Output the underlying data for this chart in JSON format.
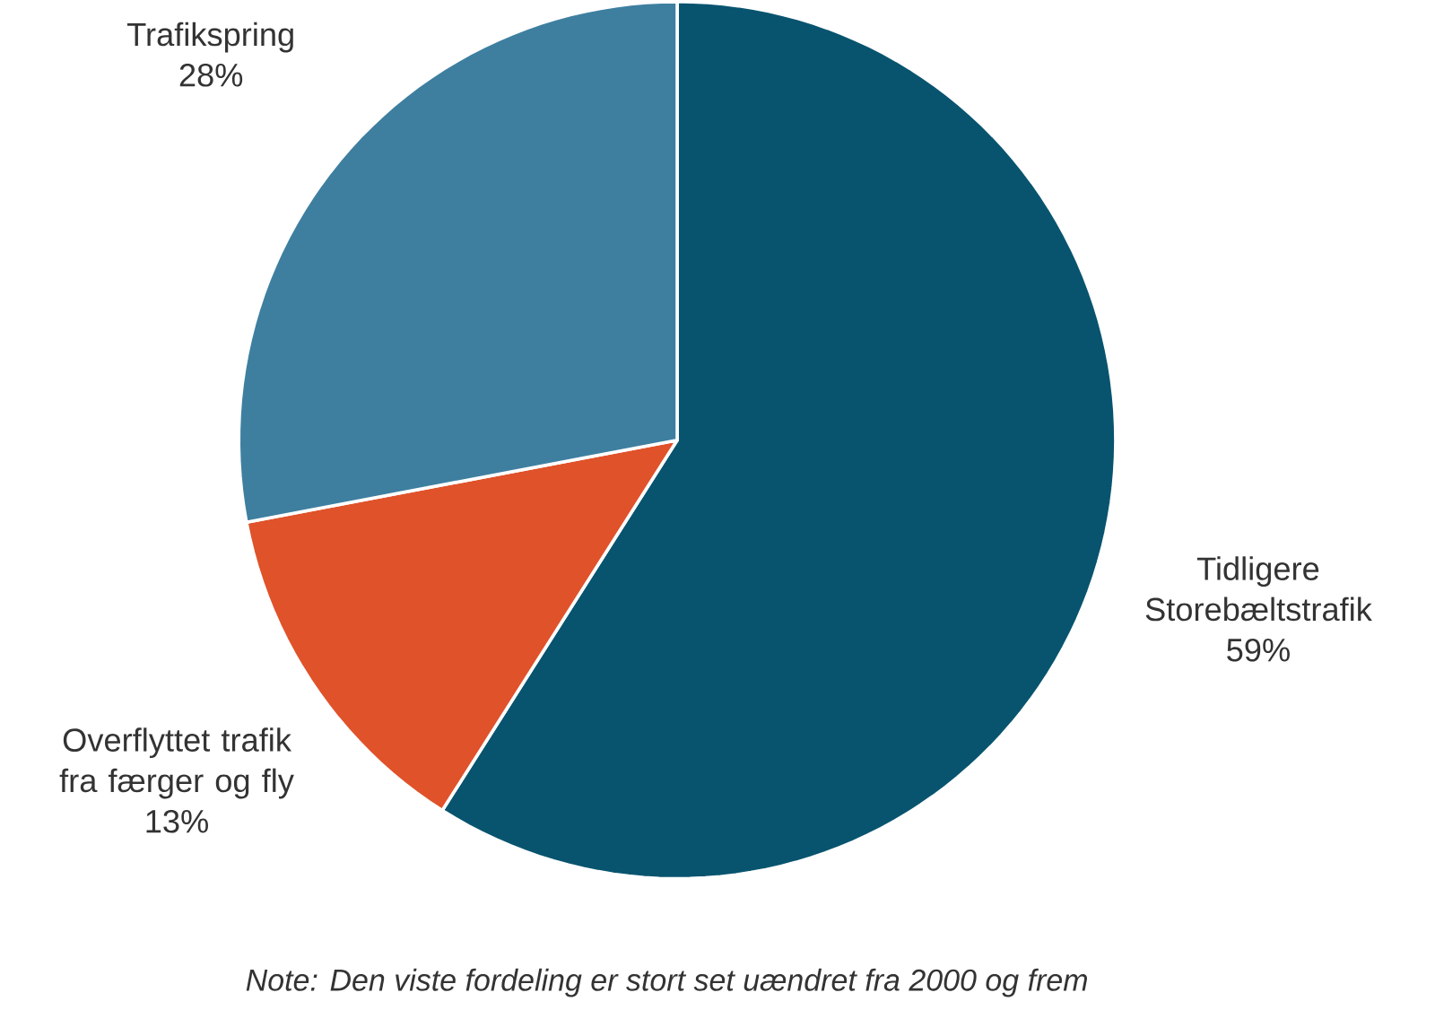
{
  "chart_data": {
    "type": "pie",
    "categories": [
      "Tidligere Storebæltstrafik",
      "Overflyttet trafik fra færger og fly",
      "Trafikspring"
    ],
    "values": [
      59,
      13,
      28
    ],
    "value_labels": [
      "59%",
      "13%",
      "28%"
    ],
    "colors": [
      "#08546f",
      "#e0522a",
      "#3e7fa0"
    ],
    "annotations": [
      "*Note: Den viste fordeling er stort set uændret fra 2000 og frem*"
    ]
  }
}
